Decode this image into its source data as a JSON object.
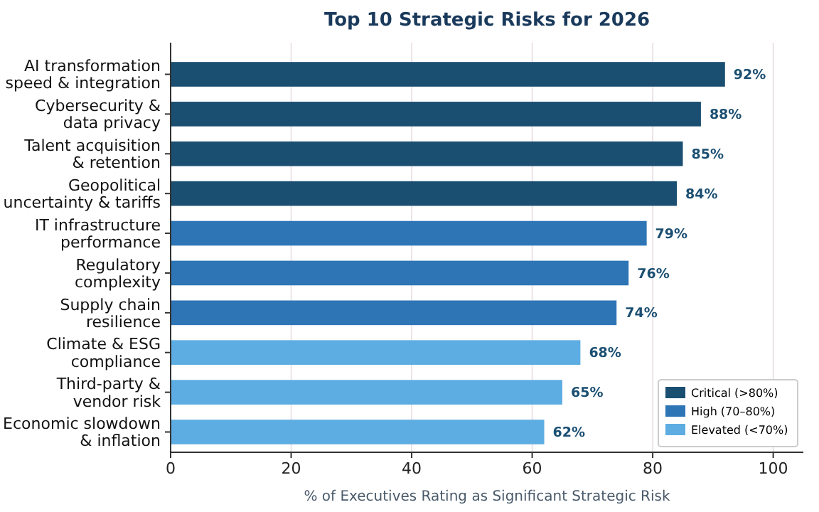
{
  "chart_data": {
    "type": "bar",
    "orientation": "horizontal",
    "title": "Top 10 Strategic Risks for 2026",
    "xlabel": "% of Executives Rating as Significant Strategic Risk",
    "categories": [
      "AI transformation\nspeed & integration",
      "Cybersecurity &\ndata privacy",
      "Talent acquisition\n& retention",
      "Geopolitical\nuncertainty & tariffs",
      "IT infrastructure\nperformance",
      "Regulatory\ncomplexity",
      "Supply chain\nresilience",
      "Climate & ESG\ncompliance",
      "Third-party &\nvendor risk",
      "Economic slowdown\n& inflation"
    ],
    "series": [
      {
        "name": "Critical (>80%)",
        "color": "#1b4f72",
        "values": [
          92,
          88,
          85,
          84,
          null,
          null,
          null,
          null,
          null,
          null
        ],
        "value_labels": [
          "92%",
          "88%",
          "85%",
          "84%",
          null,
          null,
          null,
          null,
          null,
          null
        ]
      },
      {
        "name": "High (70–80%)",
        "color": "#2e75b6",
        "values": [
          null,
          null,
          null,
          null,
          79,
          76,
          74,
          null,
          null,
          null
        ],
        "value_labels": [
          null,
          null,
          null,
          null,
          "79%",
          "76%",
          "74%",
          null,
          null,
          null
        ]
      },
      {
        "name": "Elevated (<70%)",
        "color": "#5dade2",
        "values": [
          null,
          null,
          null,
          null,
          null,
          null,
          null,
          68,
          65,
          62
        ],
        "value_labels": [
          null,
          null,
          null,
          null,
          null,
          null,
          null,
          "68%",
          "65%",
          "62%"
        ]
      }
    ],
    "xlim": [
      0,
      105
    ],
    "xticks": [
      0,
      20,
      40,
      60,
      80,
      100
    ],
    "grid": "x",
    "legend": "bottom right"
  }
}
